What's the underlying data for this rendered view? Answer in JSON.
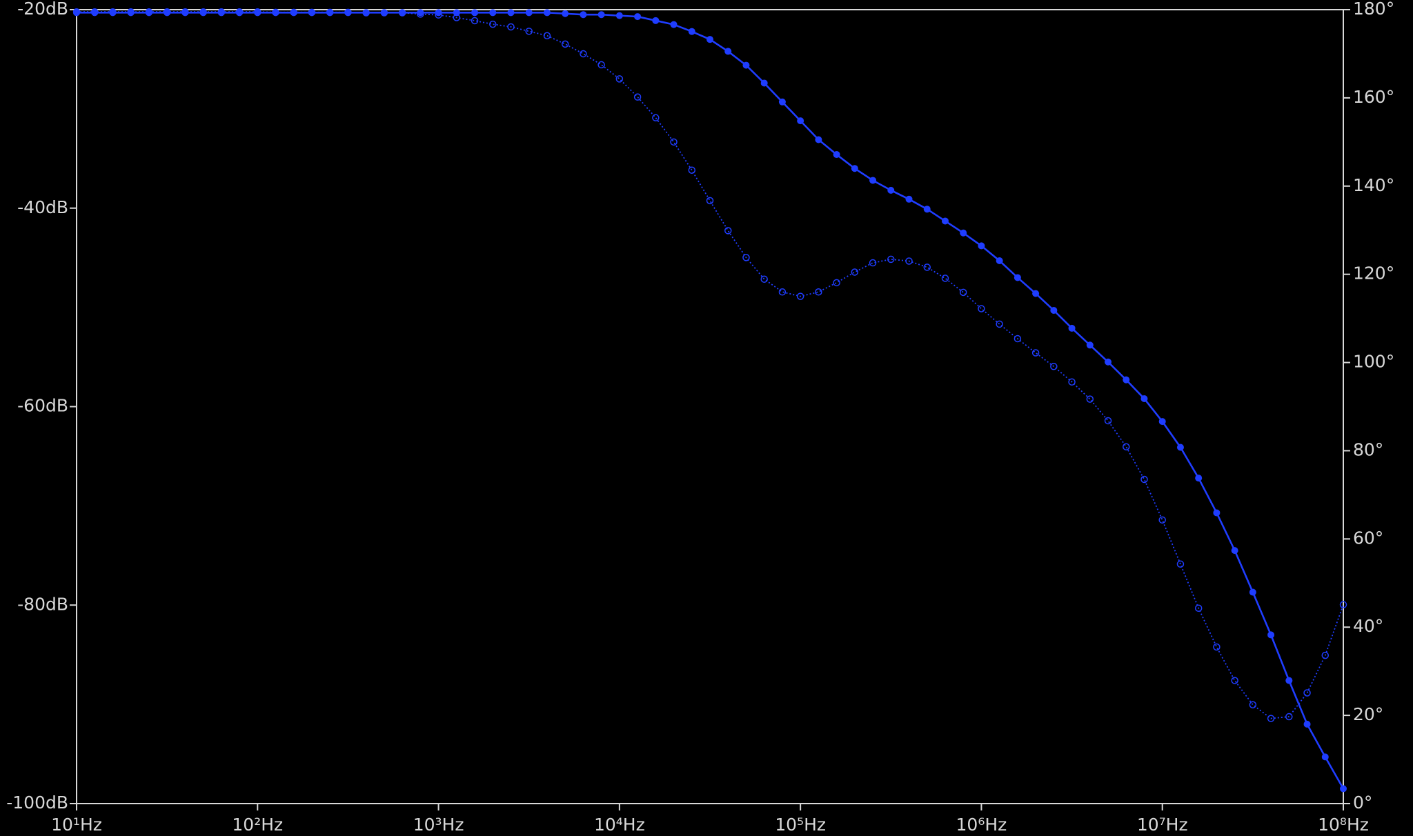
{
  "chart_data": {
    "type": "line",
    "xscale": "log",
    "xlim": [
      10,
      100000000
    ],
    "ylim": [
      -100,
      -20
    ],
    "y2lim": [
      0,
      180
    ],
    "xticks": [
      {
        "value": 10,
        "label": "10¹Hz"
      },
      {
        "value": 100,
        "label": "10²Hz"
      },
      {
        "value": 1000,
        "label": "10³Hz"
      },
      {
        "value": 10000,
        "label": "10⁴Hz"
      },
      {
        "value": 100000,
        "label": "10⁵Hz"
      },
      {
        "value": 1000000,
        "label": "10⁶Hz"
      },
      {
        "value": 10000000,
        "label": "10⁷Hz"
      },
      {
        "value": 100000000,
        "label": "10⁸Hz"
      }
    ],
    "yticks": [
      {
        "value": -20,
        "label": "-20dB"
      },
      {
        "value": -40,
        "label": "-40dB"
      },
      {
        "value": -60,
        "label": "-60dB"
      },
      {
        "value": -80,
        "label": "-80dB"
      },
      {
        "value": -100,
        "label": "-100dB"
      }
    ],
    "y2ticks": [
      {
        "value": 180,
        "label": "180°"
      },
      {
        "value": 160,
        "label": "160°"
      },
      {
        "value": 140,
        "label": "140°"
      },
      {
        "value": 120,
        "label": "120°"
      },
      {
        "value": 100,
        "label": "100°"
      },
      {
        "value": 80,
        "label": "80°"
      },
      {
        "value": 60,
        "label": "60°"
      },
      {
        "value": 40,
        "label": "40°"
      },
      {
        "value": 20,
        "label": "20°"
      },
      {
        "value": 0,
        "label": "0°"
      }
    ],
    "x": [
      10,
      12.59,
      15.85,
      19.95,
      25.12,
      31.62,
      39.81,
      50.12,
      63.1,
      79.43,
      100,
      125.9,
      158.5,
      199.5,
      251.2,
      316.2,
      398.1,
      501.2,
      631,
      794.3,
      1000,
      1259,
      1585,
      1995,
      2512,
      3162,
      3981,
      5012,
      6310,
      7943,
      10000,
      12590,
      15850,
      19950,
      25120,
      31620,
      39810,
      50120,
      63100,
      79430,
      100000,
      125900,
      158500,
      199500,
      251200,
      316200,
      398100,
      501200,
      631000,
      794300,
      1000000,
      1259000,
      1585000,
      1995000,
      2512000,
      3162000,
      3981000,
      5012000,
      6310000,
      7943000,
      10000000,
      12590000,
      15850000,
      19950000,
      25120000,
      31620000,
      39810000,
      50120000,
      63100000,
      79430000,
      100000000
    ],
    "series": [
      {
        "color": "#1f3dff",
        "marker": "filled",
        "line": "solid",
        "values": [
          -20.3,
          -20.3,
          -20.3,
          -20.3,
          -20.3,
          -20.3,
          -20.3,
          -20.3,
          -20.3,
          -20.3,
          -20.3,
          -20.3,
          -20.3,
          -20.3,
          -20.3,
          -20.3,
          -20.3,
          -20.3,
          -20.3,
          -20.3,
          -20.3,
          -20.3,
          -20.3,
          -20.3,
          -20.3,
          -20.3,
          -20.3,
          -20.4,
          -20.5,
          -20.5,
          -20.6,
          -20.7,
          -21.1,
          -21.5,
          -22.2,
          -23.0,
          -24.2,
          -25.6,
          -27.4,
          -29.3,
          -31.2,
          -33.1,
          -34.6,
          -36.0,
          -37.2,
          -38.2,
          -39.1,
          -40.1,
          -41.3,
          -42.5,
          -43.8,
          -45.3,
          -47.0,
          -48.6,
          -50.3,
          -52.1,
          -53.8,
          -55.5,
          -57.3,
          -59.2,
          -61.5,
          -64.1,
          -67.2,
          -70.7,
          -74.5,
          -78.7,
          -83.0,
          -87.6,
          -92.0,
          -95.3,
          -98.5
        ]
      },
      {
        "color": "#1f3dff",
        "marker": "open",
        "line": "dotted",
        "axis": "y2",
        "values": [
          179.5,
          179.5,
          179.5,
          179.5,
          179.5,
          179.5,
          179.5,
          179.5,
          179.5,
          179.5,
          179.5,
          179.4,
          179.4,
          179.4,
          179.4,
          179.4,
          179.3,
          179.3,
          179.3,
          179.0,
          178.8,
          178.2,
          177.5,
          176.7,
          176.1,
          175.1,
          174.1,
          172.2,
          170.0,
          167.5,
          164.3,
          160.2,
          155.5,
          150.0,
          143.6,
          136.7,
          129.9,
          123.8,
          118.9,
          116.0,
          115.0,
          116.0,
          118.1,
          120.5,
          122.6,
          123.4,
          123.0,
          121.6,
          119.1,
          115.9,
          112.2,
          108.7,
          105.4,
          102.2,
          99.1,
          95.6,
          91.7,
          86.8,
          80.9,
          73.5,
          64.3,
          54.3,
          44.3,
          35.5,
          27.9,
          22.4,
          19.3,
          19.7,
          25.1,
          33.6,
          45.1
        ]
      }
    ],
    "axis_color": "#d8d8d8"
  }
}
